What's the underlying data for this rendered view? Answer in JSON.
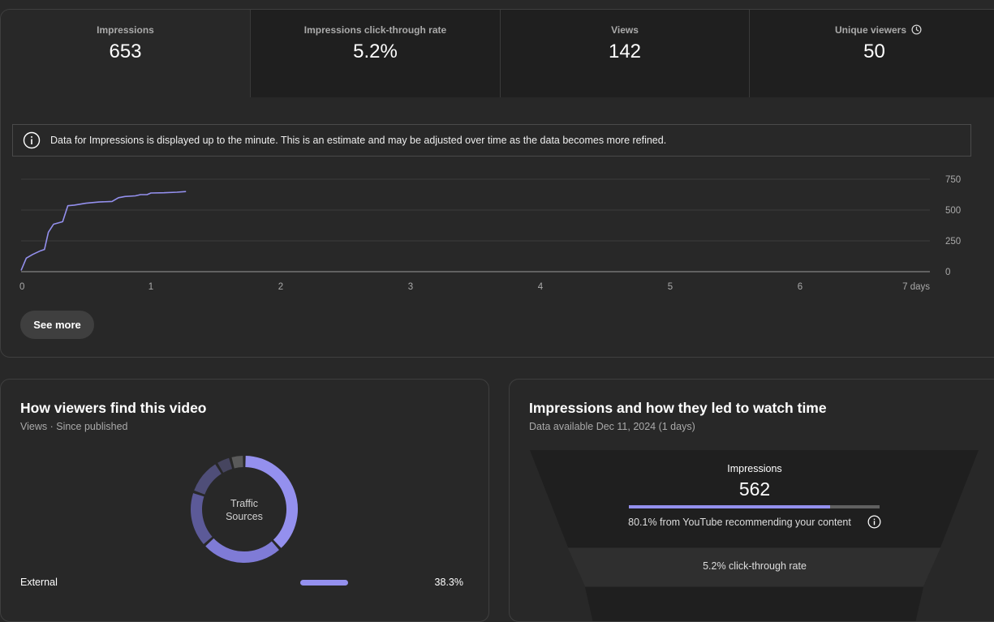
{
  "metrics": [
    {
      "label": "Impressions",
      "value": "653"
    },
    {
      "label": "Impressions click-through rate",
      "value": "5.2%"
    },
    {
      "label": "Views",
      "value": "142"
    },
    {
      "label": "Unique viewers",
      "value": "50"
    }
  ],
  "info_banner": "Data for Impressions is displayed up to the minute. This is an estimate and may be adjusted over time as the data becomes more refined.",
  "chart_data": {
    "type": "line",
    "x_ticks": [
      "0",
      "1",
      "2",
      "3",
      "4",
      "5",
      "6",
      "7 days"
    ],
    "y_ticks": [
      "0",
      "250",
      "500",
      "750"
    ],
    "xlim": [
      0,
      7
    ],
    "ylim": [
      0,
      750
    ],
    "series": [
      {
        "color": "#9490ee",
        "x": [
          0,
          0.04,
          0.09,
          0.15,
          0.18,
          0.21,
          0.25,
          0.32,
          0.36,
          0.41,
          0.5,
          0.6,
          0.7,
          0.75,
          0.8,
          0.88,
          0.92,
          0.97,
          1.0,
          1.1,
          1.2,
          1.27
        ],
        "y": [
          10,
          110,
          140,
          170,
          180,
          320,
          385,
          405,
          535,
          540,
          555,
          565,
          570,
          600,
          610,
          615,
          625,
          625,
          638,
          640,
          645,
          650
        ]
      }
    ]
  },
  "see_more": "See more",
  "traffic": {
    "title": "How viewers find this video",
    "subtitle": "Views · Since published",
    "donut_label_1": "Traffic",
    "donut_label_2": "Sources",
    "segments": [
      {
        "value": 38.3,
        "color": "#9490ee"
      },
      {
        "value": 25.0,
        "color": "#7f7bd6"
      },
      {
        "value": 17.0,
        "color": "#5c5a98"
      },
      {
        "value": 11.0,
        "color": "#4f4e78"
      },
      {
        "value": 4.5,
        "color": "#46455f"
      },
      {
        "value": 4.2,
        "color": "#5a5a5a"
      }
    ],
    "rows": [
      {
        "name": "External",
        "percent": "38.3%",
        "fraction": 0.383
      }
    ]
  },
  "funnel": {
    "title": "Impressions and how they led to watch time",
    "subtitle": "Data available Dec 11, 2024 (1 days)",
    "impressions_label": "Impressions",
    "impressions_value": "562",
    "recommend_fraction": 0.801,
    "recommend_note": "80.1% from YouTube recommending your content",
    "ctr_label": "5.2% click-through rate"
  },
  "colors": {
    "accent": "#9490ee",
    "background": "#282828",
    "tab_bg": "#1f1f1f"
  }
}
